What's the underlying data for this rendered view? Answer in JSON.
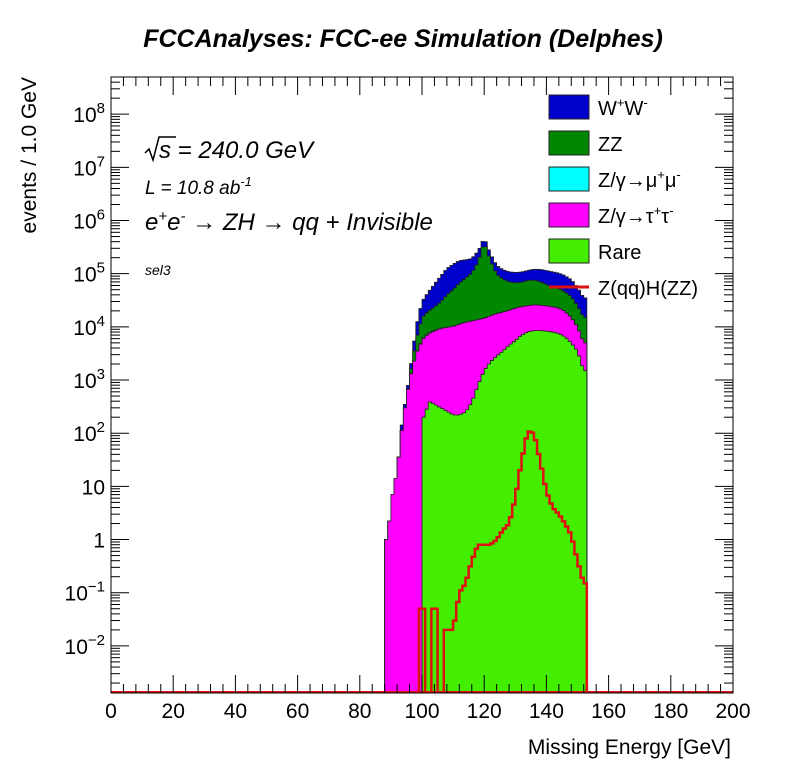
{
  "chart_data": {
    "type": "area",
    "title": "FCCAnalyses: FCC-ee Simulation (Delphes)",
    "xlabel": "Missing Energy [GeV]",
    "ylabel": "events / 1.0 GeV",
    "xlim": [
      0,
      200
    ],
    "ylim": [
      0.0013,
      500000000
    ],
    "yscale": "log",
    "stacked": true,
    "grid": false,
    "legend_position": "top-right",
    "x_ticks": [
      "0",
      "20",
      "40",
      "60",
      "80",
      "100",
      "120",
      "140",
      "160",
      "180",
      "200"
    ],
    "y_ticks": [
      {
        "base": "10",
        "exp": "−2",
        "value": 0.01
      },
      {
        "base": "10",
        "exp": "−1",
        "value": 0.1
      },
      {
        "base": "1",
        "exp": "",
        "value": 1
      },
      {
        "base": "10",
        "exp": "",
        "value": 10
      },
      {
        "base": "10",
        "exp": "2",
        "value": 100
      },
      {
        "base": "10",
        "exp": "3",
        "value": 1000
      },
      {
        "base": "10",
        "exp": "4",
        "value": 10000
      },
      {
        "base": "10",
        "exp": "5",
        "value": 100000
      },
      {
        "base": "10",
        "exp": "6",
        "value": 1000000
      },
      {
        "base": "10",
        "exp": "7",
        "value": 10000000
      },
      {
        "base": "10",
        "exp": "8",
        "value": 100000000
      }
    ],
    "annotations": {
      "energy": "s = 240.0 GeV",
      "lumi": "L = 10.8 ab",
      "lumi_exp": "-1",
      "process": "e+e- → ZH → qq + Invisible",
      "selection": "sel3"
    },
    "series": [
      {
        "name": "W+W-",
        "legend_main": "W",
        "legend_sup1": "+",
        "legend_mid": "W",
        "legend_sup2": "-",
        "color": "#0000cc",
        "points": [
          [
            88,
            0
          ],
          [
            92,
            0
          ],
          [
            94,
            30
          ],
          [
            96,
            200
          ],
          [
            98,
            4000
          ],
          [
            100,
            15000
          ],
          [
            102,
            25000
          ],
          [
            104,
            40000
          ],
          [
            106,
            60000
          ],
          [
            108,
            85000
          ],
          [
            110,
            100000
          ],
          [
            112,
            110000
          ],
          [
            114,
            100000
          ],
          [
            116,
            90000
          ],
          [
            118,
            100000
          ],
          [
            120,
            85000
          ],
          [
            122,
            60000
          ],
          [
            124,
            45000
          ],
          [
            126,
            40000
          ],
          [
            128,
            38000
          ],
          [
            130,
            38000
          ],
          [
            132,
            38000
          ],
          [
            134,
            40000
          ],
          [
            136,
            45000
          ],
          [
            138,
            50000
          ],
          [
            140,
            52000
          ],
          [
            142,
            52000
          ],
          [
            144,
            50000
          ],
          [
            146,
            46000
          ],
          [
            148,
            40000
          ],
          [
            150,
            30000
          ],
          [
            152,
            20000
          ],
          [
            154,
            0
          ]
        ]
      },
      {
        "name": "ZZ",
        "legend_main": "ZZ",
        "legend_sup1": "",
        "legend_mid": "",
        "legend_sup2": "",
        "color": "#008800",
        "points": [
          [
            96,
            150
          ],
          [
            98,
            2500
          ],
          [
            100,
            9000
          ],
          [
            102,
            12000
          ],
          [
            104,
            15000
          ],
          [
            106,
            20000
          ],
          [
            108,
            30000
          ],
          [
            110,
            40000
          ],
          [
            112,
            55000
          ],
          [
            114,
            70000
          ],
          [
            116,
            90000
          ],
          [
            118,
            150000
          ],
          [
            120,
            380000
          ],
          [
            122,
            160000
          ],
          [
            124,
            80000
          ],
          [
            126,
            60000
          ],
          [
            128,
            50000
          ],
          [
            130,
            45000
          ],
          [
            132,
            45000
          ],
          [
            134,
            50000
          ],
          [
            136,
            50000
          ],
          [
            138,
            45000
          ],
          [
            140,
            38000
          ],
          [
            142,
            32000
          ],
          [
            144,
            30000
          ],
          [
            146,
            26000
          ],
          [
            148,
            22000
          ],
          [
            150,
            15000
          ],
          [
            152,
            10000
          ],
          [
            154,
            0
          ]
        ]
      },
      {
        "name": "Z/γ→μ+μ-",
        "legend_main": "Z/γ→μ",
        "legend_sup1": "+",
        "legend_mid": "μ",
        "legend_sup2": "-",
        "color": "#00ffff",
        "points": [
          [
            88,
            0
          ],
          [
            94,
            0
          ],
          [
            95,
            0.05
          ],
          [
            96,
            1
          ],
          [
            98,
            40
          ],
          [
            100,
            150
          ],
          [
            102,
            280
          ],
          [
            104,
            230
          ],
          [
            106,
            120
          ],
          [
            107,
            40
          ],
          [
            108,
            10
          ],
          [
            110,
            5
          ],
          [
            112,
            4
          ],
          [
            114,
            4
          ],
          [
            116,
            4
          ],
          [
            120,
            3
          ],
          [
            124,
            3
          ],
          [
            128,
            3
          ],
          [
            132,
            3
          ],
          [
            136,
            3
          ],
          [
            140,
            3
          ],
          [
            144,
            3
          ],
          [
            148,
            3
          ],
          [
            152,
            3
          ],
          [
            154,
            0
          ]
        ]
      },
      {
        "name": "Z/γ→τ+τ-",
        "legend_main": "Z/γ→τ",
        "legend_sup1": "+",
        "legend_mid": "τ",
        "legend_sup2": "-",
        "color": "#ff00ff",
        "points": [
          [
            88,
            0
          ],
          [
            89,
            1
          ],
          [
            90,
            5
          ],
          [
            92,
            20
          ],
          [
            94,
            200
          ],
          [
            96,
            1000
          ],
          [
            98,
            3000
          ],
          [
            100,
            5500
          ],
          [
            102,
            7000
          ],
          [
            104,
            8000
          ],
          [
            106,
            9000
          ],
          [
            108,
            9500
          ],
          [
            110,
            10000
          ],
          [
            112,
            11000
          ],
          [
            114,
            12000
          ],
          [
            116,
            12500
          ],
          [
            118,
            13000
          ],
          [
            120,
            13000
          ],
          [
            122,
            14000
          ],
          [
            124,
            15000
          ],
          [
            126,
            15500
          ],
          [
            128,
            16000
          ],
          [
            130,
            17000
          ],
          [
            132,
            17000
          ],
          [
            134,
            17000
          ],
          [
            136,
            17500
          ],
          [
            138,
            17000
          ],
          [
            140,
            16500
          ],
          [
            142,
            16000
          ],
          [
            144,
            15000
          ],
          [
            146,
            13000
          ],
          [
            148,
            10000
          ],
          [
            150,
            6500
          ],
          [
            152,
            3500
          ],
          [
            154,
            0
          ]
        ]
      },
      {
        "name": "Rare",
        "legend_main": "Rare",
        "legend_sup1": "",
        "legend_mid": "",
        "legend_sup2": "",
        "color": "#44ee00",
        "points": [
          [
            100,
            0
          ],
          [
            101,
            200
          ],
          [
            102,
            400
          ],
          [
            104,
            350
          ],
          [
            106,
            300
          ],
          [
            108,
            260
          ],
          [
            110,
            220
          ],
          [
            112,
            220
          ],
          [
            114,
            250
          ],
          [
            116,
            380
          ],
          [
            118,
            800
          ],
          [
            120,
            1500
          ],
          [
            122,
            2200
          ],
          [
            124,
            2800
          ],
          [
            126,
            3500
          ],
          [
            128,
            4500
          ],
          [
            130,
            5500
          ],
          [
            132,
            7000
          ],
          [
            134,
            8000
          ],
          [
            136,
            8500
          ],
          [
            138,
            8500
          ],
          [
            140,
            8300
          ],
          [
            142,
            8000
          ],
          [
            144,
            7500
          ],
          [
            146,
            6500
          ],
          [
            148,
            5000
          ],
          [
            150,
            3500
          ],
          [
            152,
            1500
          ],
          [
            154,
            0
          ]
        ]
      },
      {
        "name": "Z(qq)H(ZZ)",
        "legend_main": "Z(qq)H(ZZ)",
        "legend_sup1": "",
        "legend_mid": "",
        "legend_sup2": "",
        "color": "#dd1111",
        "points": [
          [
            96,
            0
          ],
          [
            98,
            0
          ],
          [
            100,
            0.05
          ],
          [
            102,
            0
          ],
          [
            104,
            0.05
          ],
          [
            106,
            0
          ],
          [
            108,
            0.02
          ],
          [
            110,
            0.02
          ],
          [
            112,
            0.1
          ],
          [
            114,
            0.15
          ],
          [
            116,
            0.4
          ],
          [
            118,
            0.8
          ],
          [
            120,
            0.8
          ],
          [
            122,
            0.8
          ],
          [
            124,
            1
          ],
          [
            126,
            1.5
          ],
          [
            128,
            2
          ],
          [
            130,
            6
          ],
          [
            132,
            30
          ],
          [
            134,
            110
          ],
          [
            136,
            100
          ],
          [
            138,
            30
          ],
          [
            140,
            8
          ],
          [
            142,
            4
          ],
          [
            144,
            3
          ],
          [
            146,
            2
          ],
          [
            148,
            1.2
          ],
          [
            150,
            0.4
          ],
          [
            152,
            0.15
          ],
          [
            154,
            0
          ]
        ]
      }
    ]
  }
}
